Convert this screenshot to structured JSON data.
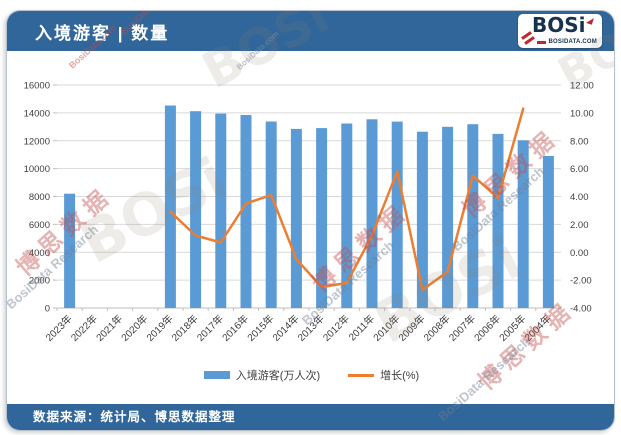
{
  "header": {
    "title": "入境游客 | 数量"
  },
  "logo": {
    "text": "BOSi",
    "domain": "BOSIDATA.COM"
  },
  "chart_data": {
    "type": "bar",
    "title": "入境游客 | 数量",
    "categories": [
      "2023年",
      "2022年",
      "2021年",
      "2020年",
      "2019年",
      "2018年",
      "2017年",
      "2016年",
      "2015年",
      "2014年",
      "2013年",
      "2012年",
      "2011年",
      "2010年",
      "2009年",
      "2008年",
      "2007年",
      "2006年",
      "2005年",
      "2004年"
    ],
    "series": [
      {
        "name": "入境游客(万人次)",
        "type": "bar",
        "axis": "left",
        "color": "#5B9BD5",
        "values": [
          8203,
          null,
          null,
          null,
          14531,
          14120,
          13948,
          13845,
          13382,
          12850,
          12908,
          13241,
          13542,
          13376,
          12648,
          13003,
          13187,
          12494,
          12029,
          10904
        ]
      },
      {
        "name": "增长(%)",
        "type": "line",
        "axis": "right",
        "color": "#ED7D31",
        "values": [
          null,
          null,
          null,
          null,
          2.9,
          1.2,
          0.7,
          3.5,
          4.1,
          -0.5,
          -2.5,
          -2.2,
          1.2,
          5.8,
          -2.7,
          -1.4,
          5.5,
          3.9,
          10.3,
          null
        ]
      }
    ],
    "left_axis": {
      "min": 0,
      "max": 16000,
      "step": 2000,
      "ticks": [
        0,
        2000,
        4000,
        6000,
        8000,
        10000,
        12000,
        14000,
        16000
      ]
    },
    "right_axis": {
      "min": -4,
      "max": 12,
      "step": 2,
      "decimals": 2,
      "ticks": [
        -4,
        -2,
        0,
        2,
        4,
        6,
        8,
        10,
        12
      ]
    },
    "grid": true,
    "legend_position": "bottom",
    "xlabel": "",
    "ylabel_left": "入境游客(万人次)",
    "ylabel_right": "增长(%)"
  },
  "footer": {
    "source": "数据来源：统计局、博思数据整理"
  },
  "watermark": {
    "cn": "博思数据",
    "en": "BosiData Research",
    "logo": "BOSi",
    "site": "BosiData.com"
  },
  "colors": {
    "header_blue": "#31669A",
    "bar_blue": "#5B9BD5",
    "line_orange": "#ED7D31",
    "grid_gray": "#D9D9D9",
    "axis_gray": "#BFBFBF",
    "tick_text": "#3F3F3F",
    "logo_red": "#C0272D",
    "logo_navy": "#17324F"
  }
}
